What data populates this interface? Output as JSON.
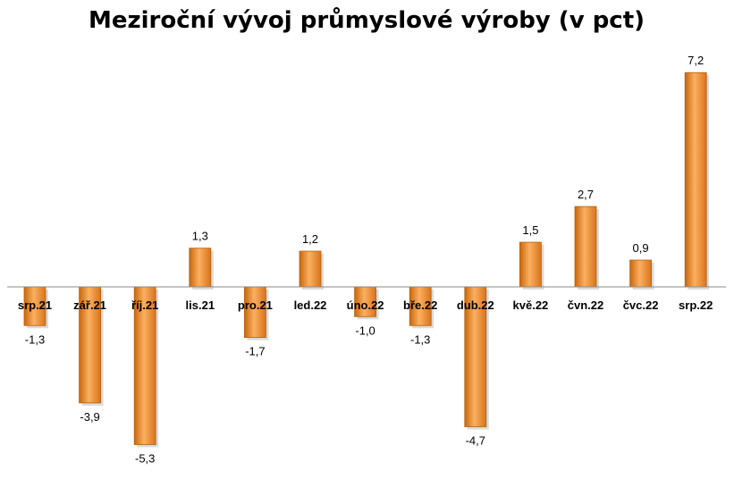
{
  "chart_data": {
    "type": "bar",
    "title": "Meziroční vývoj průmyslové výroby (v pct)",
    "xlabel": "",
    "ylabel": "",
    "categories": [
      "srp.21",
      "zář.21",
      "říj.21",
      "lis.21",
      "pro.21",
      "led.22",
      "úno.22",
      "bře.22",
      "dub.22",
      "kvě.22",
      "čvn.22",
      "čvc.22",
      "srp.22"
    ],
    "values": [
      -1.3,
      -3.9,
      -5.3,
      1.3,
      -1.7,
      1.2,
      -1.0,
      -1.3,
      -4.7,
      1.5,
      2.7,
      0.9,
      7.2
    ],
    "value_labels": [
      "-1,3",
      "-3,9",
      "-5,3",
      "1,3",
      "-1,7",
      "1,2",
      "-1,0",
      "-1,3",
      "-4,7",
      "1,5",
      "2,7",
      "0,9",
      "7,2"
    ],
    "ylim": [
      -5.3,
      7.2
    ],
    "grid": false,
    "legend": "none",
    "bar_color": "#f7941d"
  }
}
